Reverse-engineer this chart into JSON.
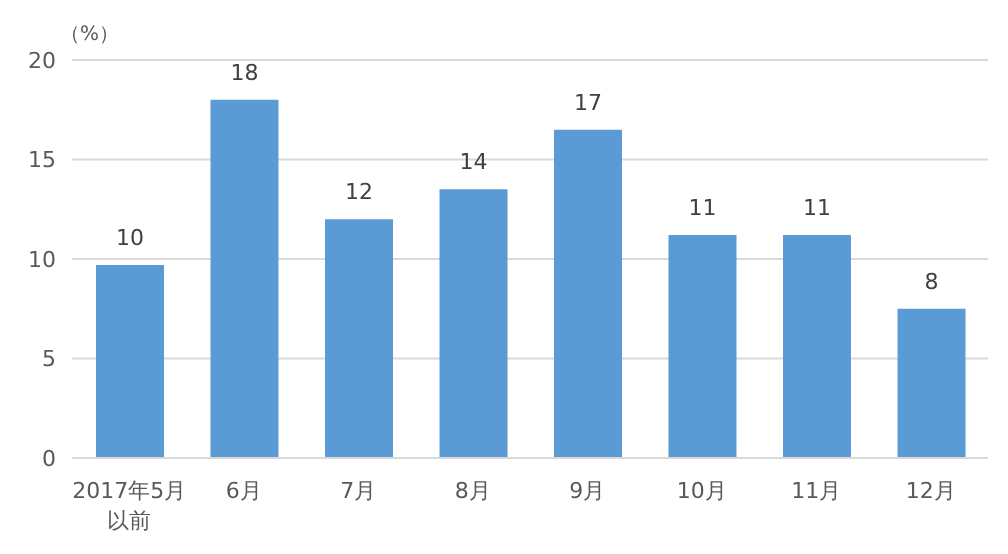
{
  "chart_data": {
    "type": "bar",
    "ylabel": "（%）",
    "categories": [
      "2017年5月以前",
      "6月",
      "7月",
      "8月",
      "9月",
      "10月",
      "11月",
      "12月"
    ],
    "values": [
      9.7,
      18,
      12,
      13.5,
      16.5,
      11.2,
      11.2,
      7.5
    ],
    "value_labels": [
      "10",
      "18",
      "12",
      "14",
      "17",
      "11",
      "11",
      "8"
    ],
    "color": "#5b9bd5",
    "ylim": [
      0,
      20
    ],
    "yticks": [
      0,
      5,
      10,
      15,
      20
    ],
    "grid": "y"
  }
}
